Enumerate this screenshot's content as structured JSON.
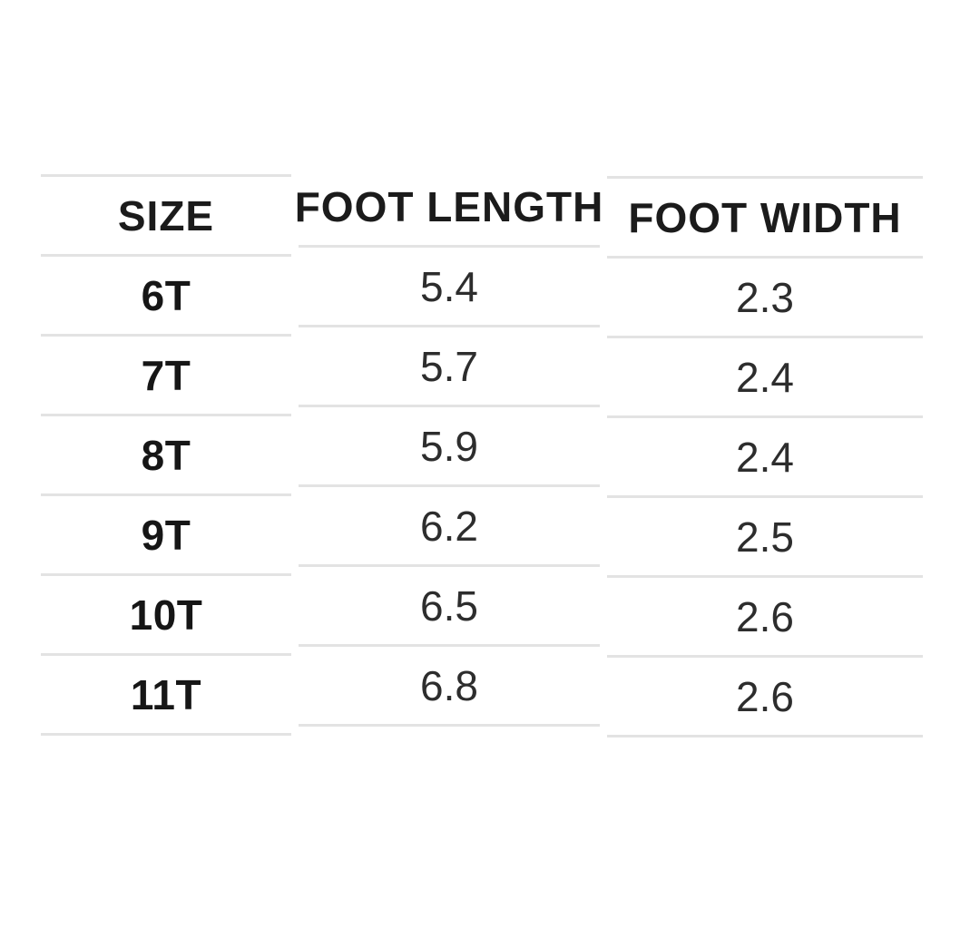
{
  "chart_data": {
    "type": "table",
    "title": "",
    "columns": [
      "SIZE",
      "FOOT LENGTH",
      "FOOT WIDTH"
    ],
    "rows": [
      [
        "6T",
        "5.4",
        "2.3"
      ],
      [
        "7T",
        "5.7",
        "2.4"
      ],
      [
        "8T",
        "5.9",
        "2.4"
      ],
      [
        "9T",
        "6.2",
        "2.5"
      ],
      [
        "10T",
        "6.5",
        "2.6"
      ],
      [
        "11T",
        "6.8",
        "2.6"
      ]
    ]
  },
  "table": {
    "columns": [
      {
        "header": "SIZE",
        "cells": [
          "6T",
          "7T",
          "8T",
          "9T",
          "10T",
          "11T"
        ]
      },
      {
        "header": "FOOT LENGTH",
        "cells": [
          "5.4",
          "5.7",
          "5.9",
          "6.2",
          "6.5",
          "6.8"
        ]
      },
      {
        "header": "FOOT WIDTH",
        "cells": [
          "2.3",
          "2.4",
          "2.4",
          "2.5",
          "2.6",
          "2.6"
        ]
      }
    ],
    "colors": {
      "header_text": "#1b1b1b",
      "size_text": "#161616",
      "value_text": "#2d2d2d",
      "divider": "#e3e3e3",
      "background": "#ffffff"
    }
  }
}
